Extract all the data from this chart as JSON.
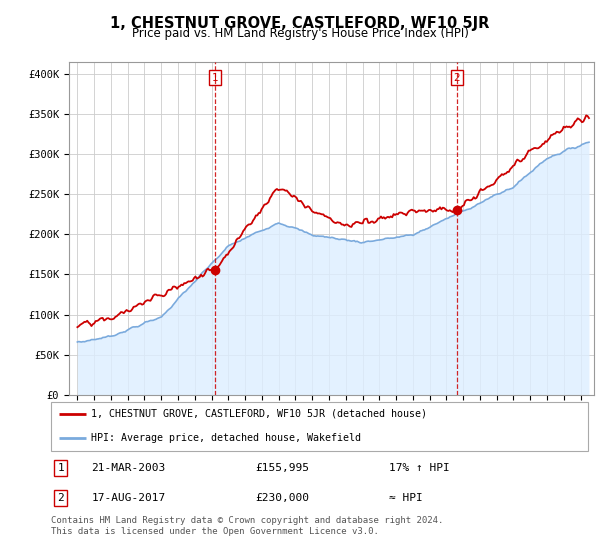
{
  "title": "1, CHESTNUT GROVE, CASTLEFORD, WF10 5JR",
  "subtitle": "Price paid vs. HM Land Registry's House Price Index (HPI)",
  "ylabel_ticks": [
    "£0",
    "£50K",
    "£100K",
    "£150K",
    "£200K",
    "£250K",
    "£300K",
    "£350K",
    "£400K"
  ],
  "ytick_values": [
    0,
    50000,
    100000,
    150000,
    200000,
    250000,
    300000,
    350000,
    400000
  ],
  "ylim": [
    0,
    415000
  ],
  "xlim_start": 1994.5,
  "xlim_end": 2025.8,
  "red_line_color": "#cc0000",
  "blue_line_color": "#7aaadd",
  "blue_fill_color": "#ddeeff",
  "marker1_x": 2003.22,
  "marker1_y": 155995,
  "marker2_x": 2017.63,
  "marker2_y": 230000,
  "legend_label_red": "1, CHESTNUT GROVE, CASTLEFORD, WF10 5JR (detached house)",
  "legend_label_blue": "HPI: Average price, detached house, Wakefield",
  "table_row1": [
    "1",
    "21-MAR-2003",
    "£155,995",
    "17% ↑ HPI"
  ],
  "table_row2": [
    "2",
    "17-AUG-2017",
    "£230,000",
    "≈ HPI"
  ],
  "footer": "Contains HM Land Registry data © Crown copyright and database right 2024.\nThis data is licensed under the Open Government Licence v3.0.",
  "title_fontsize": 10.5,
  "subtitle_fontsize": 8.5,
  "tick_fontsize": 7.5,
  "background_color": "#ffffff",
  "grid_color": "#cccccc"
}
